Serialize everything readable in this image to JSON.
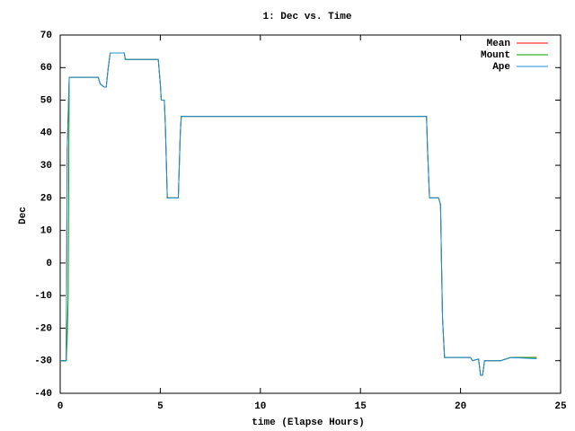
{
  "chart_data": {
    "type": "line",
    "title": "1: Dec vs. Time",
    "xlabel": "time (Elapse Hours)",
    "ylabel": "Dec",
    "x": [
      0,
      0.3,
      0.35,
      0.4,
      0.45,
      1.9,
      2.0,
      2.2,
      2.3,
      2.4,
      2.5,
      3.2,
      3.25,
      4.9,
      5.0,
      5.05,
      5.2,
      5.25,
      5.35,
      5.9,
      6.0,
      6.05,
      18.3,
      18.35,
      18.45,
      18.9,
      19.0,
      19.05,
      19.1,
      19.2,
      20.5,
      20.6,
      20.9,
      21.0,
      21.1,
      21.2,
      22.0,
      22.5,
      23.8
    ],
    "series": [
      {
        "name": "Mean",
        "color": "#ff0000",
        "values": [
          -30,
          -30,
          35,
          46,
          57,
          57,
          55,
          54,
          54,
          60,
          64.5,
          64.5,
          62.5,
          62.5,
          55,
          50,
          50,
          43,
          20,
          20,
          40,
          45,
          45,
          35,
          20,
          20,
          18,
          0,
          -17,
          -29,
          -29,
          -30,
          -29.5,
          -34.5,
          -34.5,
          -30,
          -30,
          -29,
          -29
        ]
      },
      {
        "name": "Mount",
        "color": "#00a000",
        "values": [
          -30,
          -30,
          -23,
          -10,
          57,
          57,
          55,
          54,
          54,
          60,
          64.5,
          64.5,
          62.5,
          62.5,
          55,
          50,
          50,
          43,
          20,
          20,
          40,
          45,
          45,
          35,
          20,
          20,
          18,
          0,
          -17,
          -29,
          -29,
          -30,
          -29.5,
          -34.5,
          -34.5,
          -30,
          -30,
          -29,
          -29
        ]
      },
      {
        "name": "Ape",
        "color": "#1e90d8",
        "values": [
          -30,
          -30,
          35,
          46,
          57,
          57,
          55,
          54,
          54,
          60,
          64.5,
          64.5,
          62.5,
          62.5,
          55,
          50,
          50,
          43,
          20,
          20,
          40,
          45,
          45,
          35,
          20,
          20,
          18,
          0,
          -17,
          -29,
          -29,
          -30,
          -29.5,
          -34.5,
          -34.5,
          -30,
          -30,
          -29,
          -29.4
        ]
      }
    ],
    "xlim": [
      0,
      25
    ],
    "ylim": [
      -40,
      70
    ],
    "xticks": [
      0,
      5,
      10,
      15,
      20,
      25
    ],
    "yticks": [
      -40,
      -30,
      -20,
      -10,
      0,
      10,
      20,
      30,
      40,
      50,
      60,
      70
    ],
    "legend": "upper right",
    "grid": false
  }
}
